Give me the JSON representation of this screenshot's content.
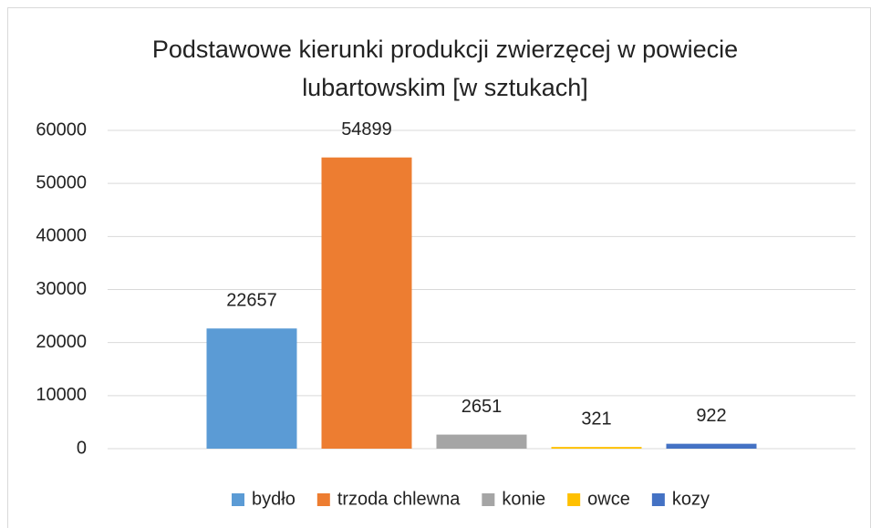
{
  "chart_data": {
    "type": "bar",
    "title": "Podstawowe kierunki produkcji zwierzęcej w powiecie lubartowskim [w sztukach]",
    "categories": [
      null
    ],
    "series": [
      {
        "name": "bydło",
        "color": "#5b9bd5",
        "values": [
          22657
        ]
      },
      {
        "name": "trzoda chlewna",
        "color": "#ed7d31",
        "values": [
          54899
        ]
      },
      {
        "name": "konie",
        "color": "#a5a5a5",
        "values": [
          2651
        ]
      },
      {
        "name": "owce",
        "color": "#ffc000",
        "values": [
          321
        ]
      },
      {
        "name": "kozy",
        "color": "#4472c4",
        "values": [
          922
        ]
      }
    ],
    "ylim": [
      0,
      60000
    ],
    "yticks": [
      0,
      10000,
      20000,
      30000,
      40000,
      50000,
      60000
    ],
    "grid": true,
    "legend": "bottom",
    "data_labels": true
  }
}
